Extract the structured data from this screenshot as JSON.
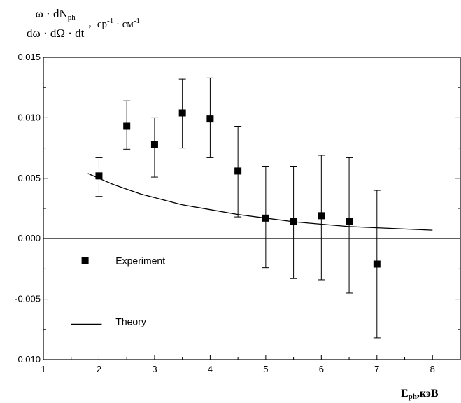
{
  "chart_data": {
    "type": "scatter",
    "title": "",
    "ylabel": {
      "num_a": "ω · dN",
      "num_sub": "ph",
      "den": "dω · dΩ · dt",
      "sep": ",",
      "units_a": "ср",
      "units_a_exp": "-1",
      "units_b": "см",
      "units_b_exp": "-1"
    },
    "xlabel": {
      "main": "E",
      "sub": "ph",
      "rest": ",кэВ"
    },
    "xlim": [
      1,
      8.5
    ],
    "ylim": [
      -0.01,
      0.015
    ],
    "x_ticks": [
      1,
      2,
      3,
      4,
      5,
      6,
      7,
      8
    ],
    "x_tick_labels": [
      "1",
      "2",
      "3",
      "4",
      "5",
      "6",
      "7",
      "8"
    ],
    "y_ticks": [
      -0.01,
      -0.005,
      0.0,
      0.005,
      0.01,
      0.015
    ],
    "y_tick_labels": [
      "-0.010",
      "-0.005",
      "0.000",
      "0.005",
      "0.010",
      "0.015"
    ],
    "zero_line": true,
    "series": [
      {
        "name": "Experiment",
        "marker": "square",
        "x": [
          2.0,
          2.5,
          3.0,
          3.5,
          4.0,
          4.5,
          5.0,
          5.5,
          6.0,
          6.5,
          7.0
        ],
        "y": [
          0.0052,
          0.0093,
          0.0078,
          0.0104,
          0.0099,
          0.0056,
          0.0017,
          0.0014,
          0.0019,
          0.0014,
          -0.0021
        ],
        "err_low": [
          0.0035,
          0.0074,
          0.0051,
          0.0075,
          0.0067,
          0.0018,
          -0.0024,
          -0.0033,
          -0.0034,
          -0.0045,
          -0.0082
        ],
        "err_high": [
          0.0067,
          0.0114,
          0.01,
          0.0132,
          0.0133,
          0.0093,
          0.006,
          0.006,
          0.0069,
          0.0067,
          0.004
        ]
      },
      {
        "name": "Theory",
        "marker": "line",
        "x": [
          1.8,
          2.0,
          2.25,
          2.5,
          2.75,
          3.0,
          3.5,
          4.0,
          4.5,
          5.0,
          5.5,
          6.0,
          6.5,
          7.0,
          7.5,
          8.0
        ],
        "y": [
          0.0054,
          0.005,
          0.0045,
          0.0041,
          0.0037,
          0.0034,
          0.0028,
          0.0024,
          0.002,
          0.0017,
          0.0014,
          0.0012,
          0.001,
          0.0009,
          0.0008,
          0.0007
        ]
      }
    ],
    "legend_position": "lower-left",
    "colors": {
      "ink": "#000000",
      "background": "#ffffff"
    }
  }
}
